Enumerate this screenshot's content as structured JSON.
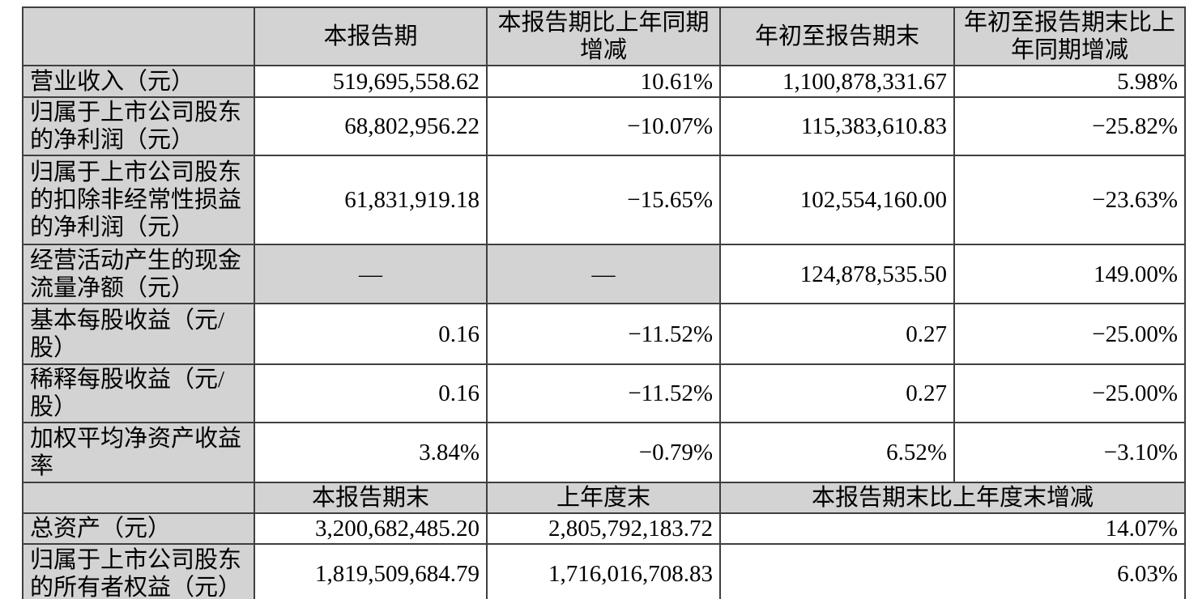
{
  "colors": {
    "page_background": "#ffffff",
    "shaded_cell_background": "#d3d3d3",
    "grid_line": "#3f3f3f",
    "text": "#000000"
  },
  "table": {
    "headers": [
      "",
      "本报告期",
      "本报告期比上年同期增减",
      "年初至报告期末",
      "年初至报告期末比上年同期增减"
    ],
    "rows": [
      {
        "label": "营业收入（元）",
        "values": [
          "519,695,558.62",
          "10.61%",
          "1,100,878,331.67",
          "5.98%"
        ]
      },
      {
        "label": "归属于上市公司股东的净利润（元）",
        "values": [
          "68,802,956.22",
          "−10.07%",
          "115,383,610.83",
          "−25.82%"
        ]
      },
      {
        "label": "归属于上市公司股东的扣除非经常性损益的净利润（元）",
        "values": [
          "61,831,919.18",
          "−15.65%",
          "102,554,160.00",
          "−23.63%"
        ]
      },
      {
        "label": "经营活动产生的现金流量净额（元）",
        "values": [
          "—",
          "—",
          "124,878,535.50",
          "149.00%"
        ]
      },
      {
        "label": "基本每股收益（元/股）",
        "values": [
          "0.16",
          "−11.52%",
          "0.27",
          "−25.00%"
        ]
      },
      {
        "label": "稀释每股收益（元/股）",
        "values": [
          "0.16",
          "−11.52%",
          "0.27",
          "−25.00%"
        ]
      },
      {
        "label": "加权平均净资产收益率",
        "values": [
          "3.84%",
          "−0.79%",
          "6.52%",
          "−3.10%"
        ]
      }
    ],
    "section2": {
      "headers": [
        "本报告期末",
        "上年度末",
        "本报告期末比上年度末增减"
      ],
      "rows": [
        {
          "label": "总资产（元）",
          "values": [
            "3,200,682,485.20",
            "2,805,792,183.72",
            "14.07%"
          ]
        },
        {
          "label": "归属于上市公司股东的所有者权益（元）",
          "values": [
            "1,819,509,684.79",
            "1,716,016,708.83",
            "6.03%"
          ]
        }
      ]
    }
  }
}
